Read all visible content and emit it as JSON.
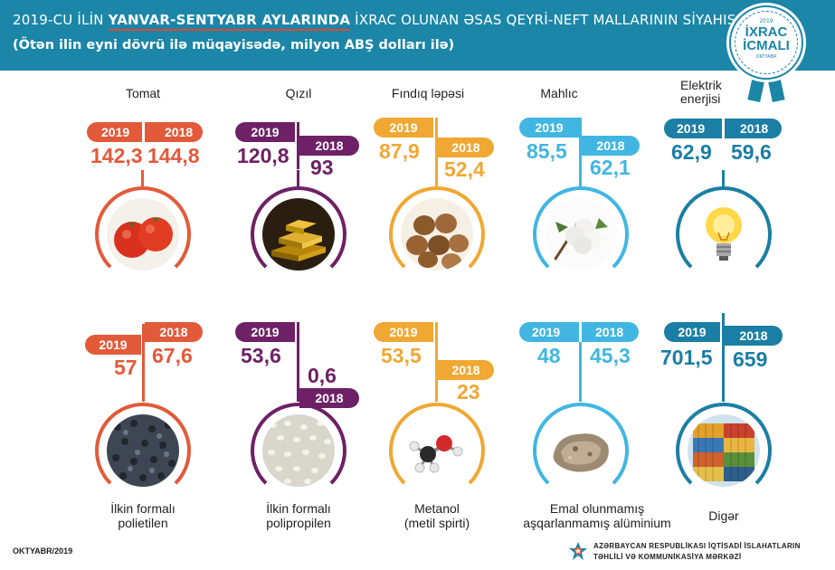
{
  "header": {
    "title_part1": "2019-CU İLİN ",
    "title_highlight": "YANVAR-SENTYABR AYLARINDA",
    "title_part2": " İXRAC OLUNAN ƏSAS QEYRİ-NEFT MALLARININ SİYAHISI",
    "subtitle": "(Ötən ilin eyni dövrü ilə müqayisədə, milyon ABŞ dolları ilə)"
  },
  "badge": {
    "year": "2019",
    "line1": "İXRAC",
    "line2": "İCMALI",
    "sub": "OKTYABR"
  },
  "colors": {
    "header": "#1b86a8",
    "tomat": "#e25a3a",
    "qizil": "#6e2166",
    "findiq": "#f0a833",
    "mahlic": "#41b6e2",
    "elektrik": "#1b7ea4"
  },
  "items": [
    {
      "name": "Tomat",
      "y2019_label": "2019",
      "y2018_label": "2018",
      "v2019": "142,3",
      "v2018": "144,8",
      "icon": "tomato-icon"
    },
    {
      "name": "Qızıl",
      "y2019_label": "2019",
      "y2018_label": "2018",
      "v2019": "120,8",
      "v2018": "93",
      "icon": "gold-bars-icon"
    },
    {
      "name": "Fındıq ləpəsi",
      "y2019_label": "2019",
      "y2018_label": "2018",
      "v2019": "87,9",
      "v2018": "52,4",
      "icon": "hazelnut-icon"
    },
    {
      "name": "Mahlıc",
      "y2019_label": "2019",
      "y2018_label": "2018",
      "v2019": "85,5",
      "v2018": "62,1",
      "icon": "cotton-icon"
    },
    {
      "name": "Elektrik enerjisi",
      "y2019_label": "2019",
      "y2018_label": "2018",
      "v2019": "62,9",
      "v2018": "59,6",
      "icon": "light-bulb-icon"
    },
    {
      "name_line1": "İlkin formalı",
      "name_line2": "polietilen",
      "y2019_label": "2019",
      "y2018_label": "2018",
      "v2019": "57",
      "v2018": "67,6",
      "icon": "polyethylene-granules-icon"
    },
    {
      "name_line1": "İlkin formalı",
      "name_line2": "polipropilen",
      "y2019_label": "2019",
      "y2018_label": "2018",
      "v2019": "53,6",
      "v2018": "0,6",
      "icon": "polypropylene-granules-icon"
    },
    {
      "name_line1": "Metanol",
      "name_line2": "(metil spirti)",
      "y2019_label": "2019",
      "y2018_label": "2018",
      "v2019": "53,5",
      "v2018": "23",
      "icon": "methanol-molecule-icon"
    },
    {
      "name_line1": "Emal olunmamış",
      "name_line2": "aşqarlanmamış alüminium",
      "y2019_label": "2019",
      "y2018_label": "2018",
      "v2019": "48",
      "v2018": "45,3",
      "icon": "aluminium-ore-icon"
    },
    {
      "name": "Digər",
      "y2019_label": "2019",
      "y2018_label": "2018",
      "v2019": "701,5",
      "v2018": "659",
      "icon": "shipping-containers-icon"
    }
  ],
  "footer": {
    "date": "OKTYABR/2019",
    "org_line1": "AZƏRBAYCAN RESPUBLİKASI İQTİSADİ İSLAHATLARIN",
    "org_line2": "TƏHLİLİ VƏ KOMMUNİKASİYA MƏRKƏZİ"
  }
}
